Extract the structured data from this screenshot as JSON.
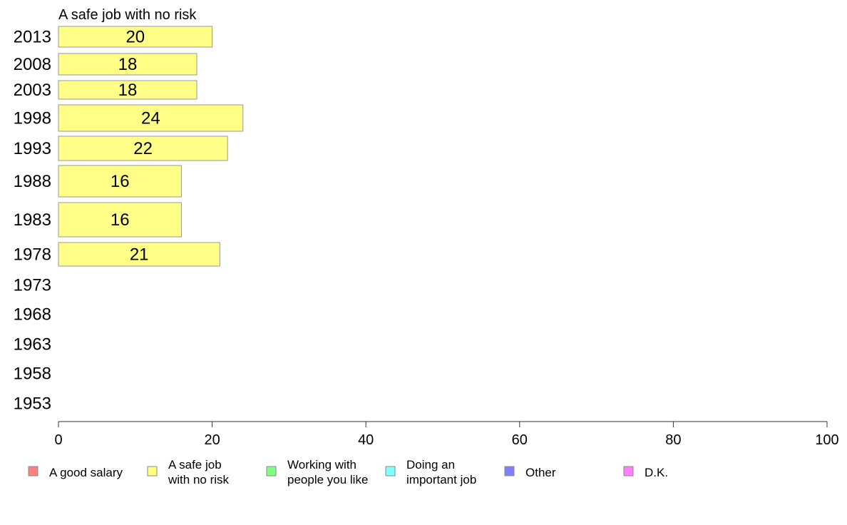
{
  "chart_data": {
    "type": "bar",
    "orientation": "horizontal",
    "title": "A safe job with no risk",
    "categories": [
      "2013",
      "2008",
      "2003",
      "1998",
      "1993",
      "1988",
      "1983",
      "1978",
      "1973",
      "1968",
      "1963",
      "1958",
      "1953"
    ],
    "values": [
      20,
      18,
      18,
      24,
      22,
      16,
      16,
      21,
      null,
      null,
      null,
      null,
      null
    ],
    "xlim": [
      0,
      100
    ],
    "xticks": [
      0,
      20,
      40,
      60,
      80,
      100
    ],
    "grid": false,
    "bar_color": "#ffff88",
    "legend": {
      "placement": "bottom",
      "items": [
        {
          "lines": [
            "A good salary"
          ],
          "color": "#ff8080"
        },
        {
          "lines": [
            "A safe job",
            "with no risk"
          ],
          "color": "#ffff80"
        },
        {
          "lines": [
            "Working with",
            "people you like"
          ],
          "color": "#80ff80"
        },
        {
          "lines": [
            "Doing an",
            "important job"
          ],
          "color": "#80ffff"
        },
        {
          "lines": [
            "Other"
          ],
          "color": "#8080ff"
        },
        {
          "lines": [
            "D.K."
          ],
          "color": "#ff80ff"
        }
      ]
    }
  }
}
